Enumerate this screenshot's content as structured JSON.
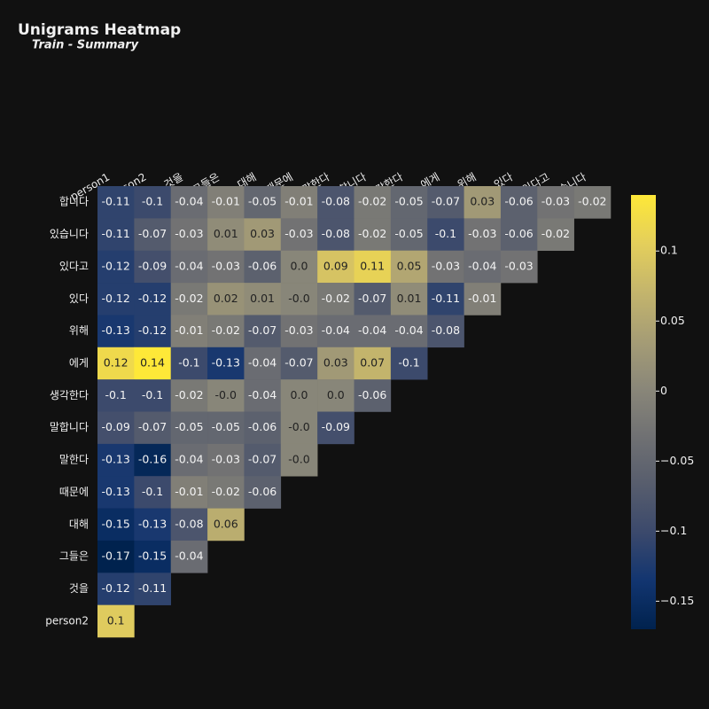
{
  "chart_data": {
    "type": "heatmap",
    "title": "Unigrams Heatmap",
    "subtitle": "Train - Summary",
    "x": [
      "person1",
      "person2",
      "것을",
      "그들은",
      "대해",
      "때문에",
      "말한다",
      "말합니다",
      "생각한다",
      "에게",
      "위해",
      "있다",
      "있다고",
      "있습니다"
    ],
    "y": [
      "합니다",
      "있습니다",
      "있다고",
      "있다",
      "위해",
      "에게",
      "생각한다",
      "말합니다",
      "말한다",
      "때문에",
      "대해",
      "그들은",
      "것을",
      "person2"
    ],
    "values": [
      [
        -0.11,
        -0.1,
        -0.04,
        -0.01,
        -0.05,
        -0.01,
        -0.08,
        -0.02,
        -0.05,
        -0.07,
        0.03,
        -0.06,
        -0.03,
        -0.02
      ],
      [
        -0.11,
        -0.07,
        -0.03,
        0.01,
        0.03,
        -0.03,
        -0.08,
        -0.02,
        -0.05,
        -0.1,
        -0.03,
        -0.06,
        -0.02,
        null
      ],
      [
        -0.12,
        -0.09,
        -0.04,
        -0.03,
        -0.06,
        0.0,
        0.09,
        0.11,
        0.05,
        -0.03,
        -0.04,
        -0.03,
        null,
        null
      ],
      [
        -0.12,
        -0.12,
        -0.02,
        0.02,
        0.01,
        -0.0,
        -0.02,
        -0.07,
        0.01,
        -0.11,
        -0.01,
        null,
        null,
        null
      ],
      [
        -0.13,
        -0.12,
        -0.01,
        -0.02,
        -0.07,
        -0.03,
        -0.04,
        -0.04,
        -0.04,
        -0.08,
        null,
        null,
        null,
        null
      ],
      [
        0.12,
        0.14,
        -0.1,
        -0.13,
        -0.04,
        -0.07,
        0.03,
        0.07,
        -0.1,
        null,
        null,
        null,
        null,
        null
      ],
      [
        -0.1,
        -0.1,
        -0.02,
        -0.0,
        -0.04,
        0.0,
        0.0,
        -0.06,
        null,
        null,
        null,
        null,
        null,
        null
      ],
      [
        -0.09,
        -0.07,
        -0.05,
        -0.05,
        -0.06,
        -0.0,
        -0.09,
        null,
        null,
        null,
        null,
        null,
        null,
        null
      ],
      [
        -0.13,
        -0.16,
        -0.04,
        -0.03,
        -0.07,
        -0.0,
        null,
        null,
        null,
        null,
        null,
        null,
        null,
        null
      ],
      [
        -0.13,
        -0.1,
        -0.01,
        -0.02,
        -0.06,
        null,
        null,
        null,
        null,
        null,
        null,
        null,
        null,
        null
      ],
      [
        -0.15,
        -0.13,
        -0.08,
        0.06,
        null,
        null,
        null,
        null,
        null,
        null,
        null,
        null,
        null,
        null
      ],
      [
        -0.17,
        -0.15,
        -0.04,
        null,
        null,
        null,
        null,
        null,
        null,
        null,
        null,
        null,
        null,
        null
      ],
      [
        -0.12,
        -0.11,
        null,
        null,
        null,
        null,
        null,
        null,
        null,
        null,
        null,
        null,
        null,
        null
      ],
      [
        0.1,
        null,
        null,
        null,
        null,
        null,
        null,
        null,
        null,
        null,
        null,
        null,
        null,
        null
      ]
    ],
    "value_labels": [
      [
        "-0.11",
        "-0.1",
        "-0.04",
        "-0.01",
        "-0.05",
        "-0.01",
        "-0.08",
        "-0.02",
        "-0.05",
        "-0.07",
        "0.03",
        "-0.06",
        "-0.03",
        "-0.02"
      ],
      [
        "-0.11",
        "-0.07",
        "-0.03",
        "0.01",
        "0.03",
        "-0.03",
        "-0.08",
        "-0.02",
        "-0.05",
        "-0.1",
        "-0.03",
        "-0.06",
        "-0.02",
        null
      ],
      [
        "-0.12",
        "-0.09",
        "-0.04",
        "-0.03",
        "-0.06",
        "0.0",
        "0.09",
        "0.11",
        "0.05",
        "-0.03",
        "-0.04",
        "-0.03",
        null,
        null
      ],
      [
        "-0.12",
        "-0.12",
        "-0.02",
        "0.02",
        "0.01",
        "-0.0",
        "-0.02",
        "-0.07",
        "0.01",
        "-0.11",
        "-0.01",
        null,
        null,
        null
      ],
      [
        "-0.13",
        "-0.12",
        "-0.01",
        "-0.02",
        "-0.07",
        "-0.03",
        "-0.04",
        "-0.04",
        "-0.04",
        "-0.08",
        null,
        null,
        null,
        null
      ],
      [
        "0.12",
        "0.14",
        "-0.1",
        "-0.13",
        "-0.04",
        "-0.07",
        "0.03",
        "0.07",
        "-0.1",
        null,
        null,
        null,
        null,
        null
      ],
      [
        "-0.1",
        "-0.1",
        "-0.02",
        "-0.0",
        "-0.04",
        "0.0",
        "0.0",
        "-0.06",
        null,
        null,
        null,
        null,
        null,
        null
      ],
      [
        "-0.09",
        "-0.07",
        "-0.05",
        "-0.05",
        "-0.06",
        "-0.0",
        "-0.09",
        null,
        null,
        null,
        null,
        null,
        null,
        null
      ],
      [
        "-0.13",
        "-0.16",
        "-0.04",
        "-0.03",
        "-0.07",
        "-0.0",
        null,
        null,
        null,
        null,
        null,
        null,
        null,
        null
      ],
      [
        "-0.13",
        "-0.1",
        "-0.01",
        "-0.02",
        "-0.06",
        null,
        null,
        null,
        null,
        null,
        null,
        null,
        null,
        null
      ],
      [
        "-0.15",
        "-0.13",
        "-0.08",
        "0.06",
        null,
        null,
        null,
        null,
        null,
        null,
        null,
        null,
        null,
        null
      ],
      [
        "-0.17",
        "-0.15",
        "-0.04",
        null,
        null,
        null,
        null,
        null,
        null,
        null,
        null,
        null,
        null,
        null
      ],
      [
        "-0.12",
        "-0.11",
        null,
        null,
        null,
        null,
        null,
        null,
        null,
        null,
        null,
        null,
        null,
        null
      ],
      [
        "0.1",
        null,
        null,
        null,
        null,
        null,
        null,
        null,
        null,
        null,
        null,
        null,
        null,
        null
      ]
    ],
    "zlim": [
      -0.17,
      0.14
    ],
    "zticks": [
      {
        "value": -0.15,
        "label": "−0.15"
      },
      {
        "value": -0.1,
        "label": "−0.1"
      },
      {
        "value": -0.05,
        "label": "−0.05"
      },
      0,
      0.05,
      0.1
    ],
    "colorscale": [
      "#00224e",
      "#123570",
      "#3b496c",
      "#575d6d",
      "#707173",
      "#8a8779",
      "#a69d75",
      "#c4b56c",
      "#e4cf5b",
      "#fee838"
    ]
  }
}
